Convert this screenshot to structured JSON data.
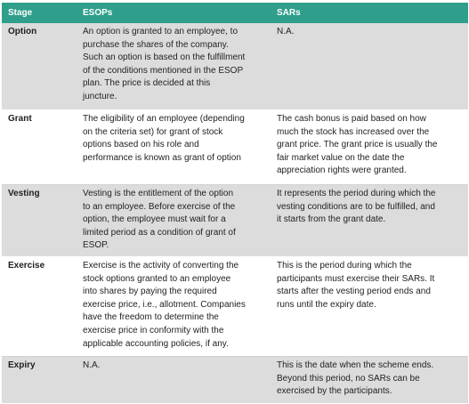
{
  "table": {
    "headers": [
      "Stage",
      "ESOPs",
      "SARs"
    ],
    "rows": [
      {
        "stage": "Option",
        "esops": "An option is granted to an employee, to\npurchase the shares of the company.\nSuch an option is based on the fulfillment\nof the conditions mentioned in the ESOP\nplan. The price is decided at this\njuncture.",
        "sars": "N.A."
      },
      {
        "stage": "Grant",
        "esops": "The eligibility of an employee (depending\non the criteria set) for grant of stock\noptions based on his role and\nperformance is known as grant of option",
        "sars": "The cash bonus is paid based on how\nmuch the stock has increased over the\ngrant price. The grant price is usually the\nfair market value on the date the\nappreciation rights were granted."
      },
      {
        "stage": "Vesting",
        "esops": "Vesting is the entitlement of the option\nto an employee. Before exercise of the\noption, the employee must wait for a\nlimited period as a condition of grant of\nESOP.",
        "sars": "It represents the period during which the\nvesting conditions are to be fulfilled, and\nit starts from the grant date."
      },
      {
        "stage": "Exercise",
        "esops": "Exercise is the activity of converting the\nstock options granted to an employee\ninto shares by paying the required\nexercise price, i.e., allotment. Companies\nhave the freedom to determine the\nexercise price in conformity with the\napplicable accounting policies, if any.",
        "sars": "This is the period during which the\nparticipants must exercise their SARs. It\nstarts after the vesting period ends and\nruns until the expiry date."
      },
      {
        "stage": "Expiry",
        "esops": "N.A.",
        "sars": "This is the date when the scheme ends.\nBeyond this period, no SARs can be\nexercised by the participants."
      }
    ]
  },
  "colors": {
    "header_bg": "#2f9f8c",
    "header_text": "#ffffff",
    "row_shaded": "#dcdcdc",
    "row_plain": "#ffffff"
  }
}
